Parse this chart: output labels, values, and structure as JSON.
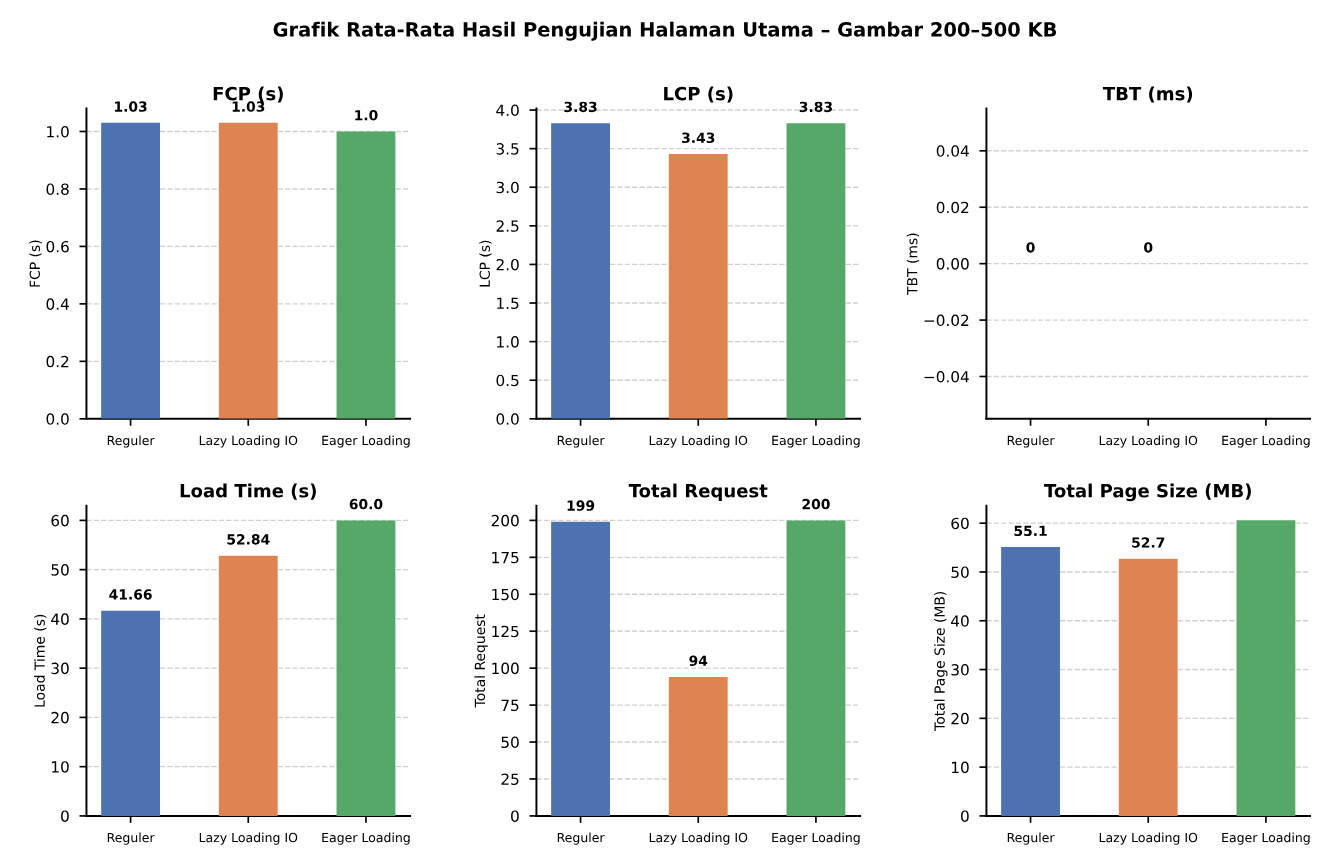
{
  "chart_data": [
    {
      "type": "bar",
      "title": "FCP (s)",
      "ylabel": "FCP (s)",
      "categories": [
        "Reguler",
        "Lazy Loading IO",
        "Eager Loading"
      ],
      "values": [
        1.03,
        1.03,
        1.0
      ],
      "value_labels": [
        "1.03",
        "1.03",
        "1.0"
      ],
      "colors": [
        "#4c72b0",
        "#dd8452",
        "#55a868"
      ],
      "ylim": [
        0,
        1.08
      ],
      "yticks": [
        {
          "value": 0,
          "label": "0.0"
        },
        {
          "value": 0.2,
          "label": "0.2"
        },
        {
          "value": 0.4,
          "label": "0.4"
        },
        {
          "value": 0.6,
          "label": "0.6"
        },
        {
          "value": 0.8,
          "label": "0.8"
        },
        {
          "value": 1.0,
          "label": "1.0"
        }
      ],
      "grid": "y"
    },
    {
      "type": "bar",
      "title": "LCP (s)",
      "ylabel": "LCP (s)",
      "categories": [
        "Reguler",
        "Lazy Loading IO",
        "Eager Loading"
      ],
      "values": [
        3.83,
        3.43,
        3.83
      ],
      "value_labels": [
        "3.83",
        "3.43",
        "3.83"
      ],
      "colors": [
        "#4c72b0",
        "#dd8452",
        "#55a868"
      ],
      "ylim": [
        0,
        4.02
      ],
      "yticks": [
        {
          "value": 0,
          "label": "0.0"
        },
        {
          "value": 0.5,
          "label": "0.5"
        },
        {
          "value": 1.0,
          "label": "1.0"
        },
        {
          "value": 1.5,
          "label": "1.5"
        },
        {
          "value": 2.0,
          "label": "2.0"
        },
        {
          "value": 2.5,
          "label": "2.5"
        },
        {
          "value": 3.0,
          "label": "3.0"
        },
        {
          "value": 3.5,
          "label": "3.5"
        },
        {
          "value": 4.0,
          "label": "4.0"
        }
      ],
      "grid": "y"
    },
    {
      "type": "bar",
      "title": "TBT (ms)",
      "ylabel": "TBT (ms)",
      "categories": [
        "Reguler",
        "Lazy Loading IO",
        "Eager Loading"
      ],
      "values": [
        0,
        0,
        0
      ],
      "value_labels": [
        "0",
        "0",
        null
      ],
      "colors": [
        "#4c72b0",
        "#dd8452",
        "#55a868"
      ],
      "ylim": [
        -0.055,
        0.055
      ],
      "yticks": [
        {
          "value": -0.04,
          "label": "−0.04"
        },
        {
          "value": -0.02,
          "label": "−0.02"
        },
        {
          "value": 0,
          "label": "0.00"
        },
        {
          "value": 0.02,
          "label": "0.02"
        },
        {
          "value": 0.04,
          "label": "0.04"
        }
      ],
      "grid": "y"
    },
    {
      "type": "bar",
      "title": "Load Time (s)",
      "ylabel": "Load Time (s)",
      "categories": [
        "Reguler",
        "Lazy Loading IO",
        "Eager Loading"
      ],
      "values": [
        41.66,
        52.84,
        60.0
      ],
      "value_labels": [
        "41.66",
        "52.84",
        "60.0"
      ],
      "colors": [
        "#4c72b0",
        "#dd8452",
        "#55a868"
      ],
      "ylim": [
        0,
        63
      ],
      "yticks": [
        0,
        10,
        20,
        30,
        40,
        50,
        60
      ],
      "grid": "y"
    },
    {
      "type": "bar",
      "title": "Total Request",
      "ylabel": "Total Request",
      "categories": [
        "Reguler",
        "Lazy Loading IO",
        "Eager Loading"
      ],
      "values": [
        199,
        94,
        200
      ],
      "value_labels": [
        "199",
        "94",
        "200"
      ],
      "colors": [
        "#4c72b0",
        "#dd8452",
        "#55a868"
      ],
      "ylim": [
        0,
        210
      ],
      "yticks": [
        0,
        25,
        50,
        75,
        100,
        125,
        150,
        175,
        200
      ],
      "grid": "y"
    },
    {
      "type": "bar",
      "title": "Total Page Size (MB)",
      "ylabel": "Total Page Size (MB)",
      "categories": [
        "Reguler",
        "Lazy Loading IO",
        "Eager Loading"
      ],
      "values": [
        55.1,
        52.7,
        60.6
      ],
      "value_labels": [
        "55.1",
        "52.7",
        null
      ],
      "colors": [
        "#4c72b0",
        "#dd8452",
        "#55a868"
      ],
      "ylim": [
        0,
        63.6
      ],
      "yticks": [
        0,
        10,
        20,
        30,
        40,
        50,
        60
      ],
      "grid": "y"
    },
    {
      "type": "other",
      "title": "Grafik Rata-Rata Hasil Pengujian Halaman Utama – Gambar 200–500 KB"
    }
  ]
}
